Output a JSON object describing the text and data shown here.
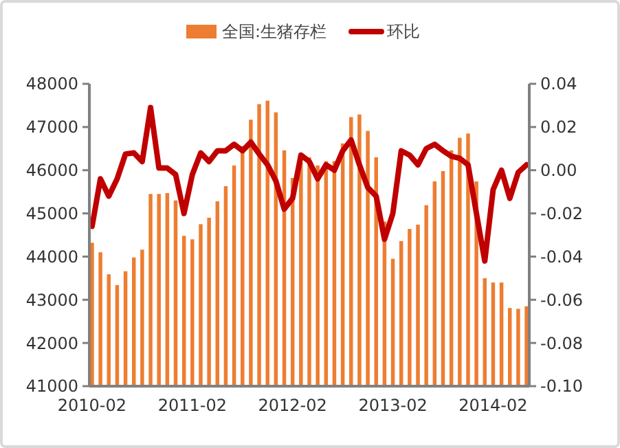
{
  "chart_data": {
    "type": "bar",
    "categories": [
      "2010-02",
      null,
      null,
      null,
      null,
      null,
      null,
      null,
      null,
      null,
      null,
      null,
      "2011-02",
      null,
      null,
      null,
      null,
      null,
      null,
      null,
      null,
      null,
      null,
      null,
      "2012-02",
      null,
      null,
      null,
      null,
      null,
      null,
      null,
      null,
      null,
      null,
      null,
      "2013-02",
      null,
      null,
      null,
      null,
      null,
      null,
      null,
      null,
      null,
      null,
      null,
      "2014-02",
      null,
      null,
      null,
      null
    ],
    "series": [
      {
        "name": "全国:生猪存栏",
        "color": "#ed7d31",
        "values": [
          44320,
          44100,
          43590,
          43340,
          43660,
          43980,
          44160,
          45450,
          45450,
          45470,
          45300,
          44480,
          44400,
          44750,
          44900,
          45280,
          45630,
          46110,
          46560,
          47170,
          47530,
          47610,
          47340,
          46460,
          45820,
          46180,
          46300,
          46110,
          46210,
          46210,
          46620,
          47230,
          47290,
          46910,
          46300,
          44810,
          43950,
          44360,
          44640,
          44740,
          45190,
          45740,
          45980,
          46460,
          46750,
          46850,
          45740,
          43500,
          43400,
          43400,
          42810,
          42790,
          42850
        ]
      },
      {
        "name": "环比",
        "type": "line",
        "axis": "y2",
        "color": "#c00000",
        "values": [
          -0.026,
          -0.004,
          -0.012,
          -0.004,
          0.0075,
          0.008,
          0.004,
          0.029,
          0.001,
          0.001,
          -0.002,
          -0.02,
          -0.002,
          0.008,
          0.004,
          0.009,
          0.009,
          0.012,
          0.009,
          0.013,
          0.0075,
          0.0025,
          -0.005,
          -0.018,
          -0.013,
          0.007,
          0.004,
          -0.004,
          0.0025,
          0,
          0.009,
          0.014,
          0.0025,
          -0.008,
          -0.012,
          -0.032,
          -0.02,
          0.009,
          0.007,
          0.0025,
          0.01,
          0.012,
          0.009,
          0.0065,
          0.0055,
          0.0025,
          -0.02,
          -0.042,
          -0.009,
          0,
          -0.013,
          -0.001,
          0.0025
        ]
      }
    ],
    "ylim": [
      41000,
      48000
    ],
    "yticks": [
      41000,
      42000,
      43000,
      44000,
      45000,
      46000,
      47000,
      48000
    ],
    "y2lim": [
      -0.1,
      0.04
    ],
    "y2ticks": [
      {
        "value": -0.1,
        "label": "-0.10"
      },
      {
        "value": -0.08,
        "label": "-0.08"
      },
      {
        "value": -0.06,
        "label": "-0.06"
      },
      {
        "value": -0.04,
        "label": "-0.04"
      },
      {
        "value": -0.02,
        "label": "-0.02"
      },
      {
        "value": 0,
        "label": "0.00"
      },
      {
        "value": 0.02,
        "label": "0.02"
      },
      {
        "value": 0.04,
        "label": "0.04"
      }
    ],
    "legend": "top",
    "grid": false
  }
}
